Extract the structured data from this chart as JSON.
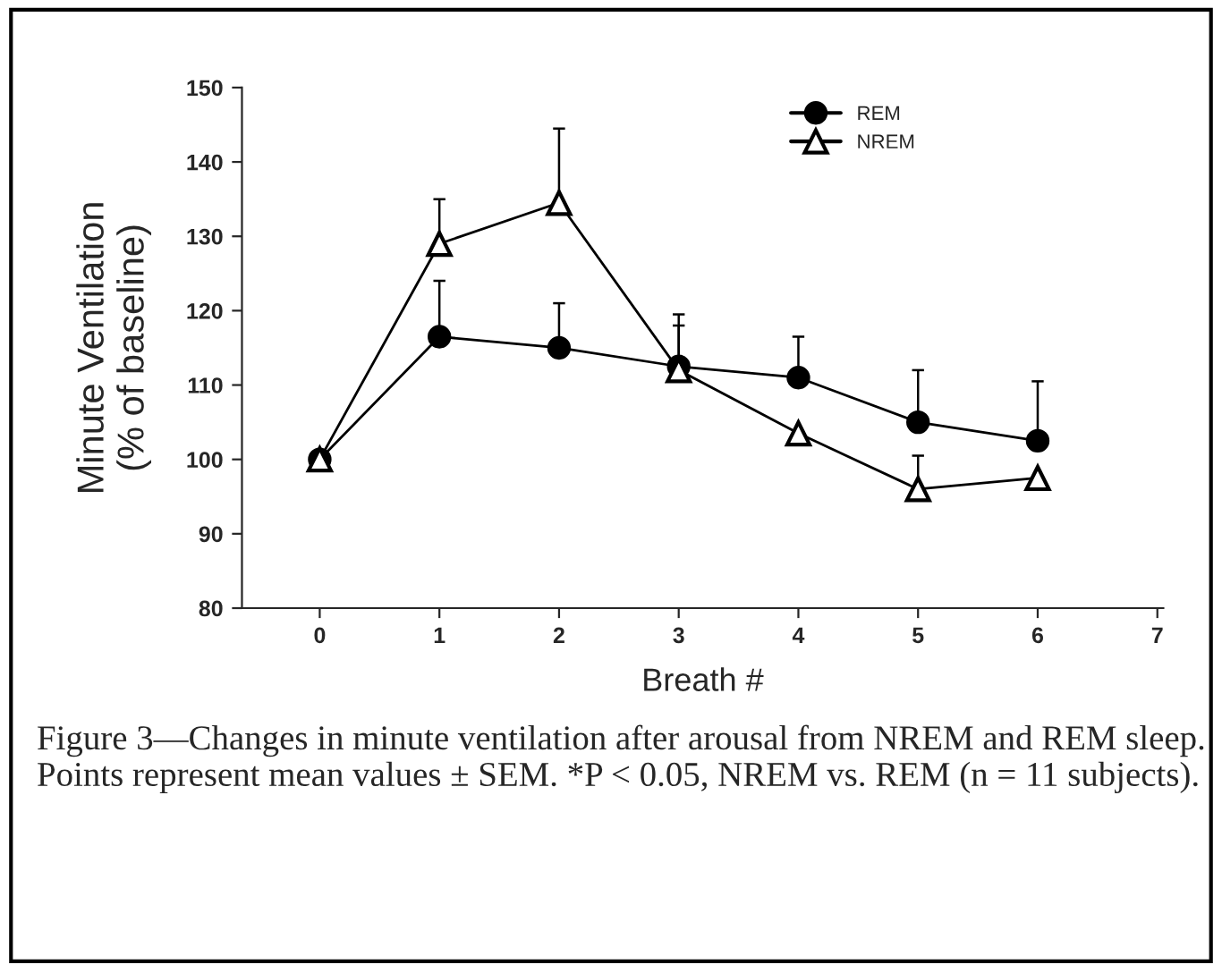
{
  "chart_data": {
    "type": "line",
    "xlabel": "Breath #",
    "ylabel": "Minute Ventilation\n(% of baseline)",
    "x": [
      0,
      1,
      2,
      3,
      4,
      5,
      6
    ],
    "series": [
      {
        "name": "REM",
        "color": "#000000",
        "marker": "circle",
        "values": [
          100,
          116.5,
          115,
          112.5,
          111,
          105,
          102.5
        ],
        "errors": [
          null,
          [
            116.5,
            124
          ],
          [
            115,
            121
          ],
          [
            112.5,
            118
          ],
          [
            111,
            116.5
          ],
          [
            105,
            112
          ],
          [
            102.5,
            110.5
          ]
        ]
      },
      {
        "name": "NREM",
        "color": "#000000",
        "marker": "triangle",
        "values": [
          100,
          129,
          134.5,
          112,
          103.5,
          96,
          97.5
        ],
        "errors": [
          null,
          [
            129,
            135
          ],
          [
            134.5,
            144.5
          ],
          [
            112,
            119.5
          ],
          null,
          [
            96,
            100.5
          ],
          null
        ]
      }
    ],
    "xlim": [
      -0.65,
      7.05
    ],
    "xticks": [
      0,
      1,
      2,
      3,
      4,
      5,
      6,
      7
    ],
    "ylim": [
      80,
      150
    ],
    "yticks": [
      80,
      90,
      100,
      110,
      120,
      130,
      140,
      150
    ],
    "grid": false,
    "legend": "top right",
    "line_style": "solid",
    "annotations": [
      "Figure 3—Changes in minute ventilation after arousal from NREM and REM sleep. Points represent mean values ± SEM. *P < 0.05, NREM vs. REM (n = 11 subjects)."
    ]
  }
}
